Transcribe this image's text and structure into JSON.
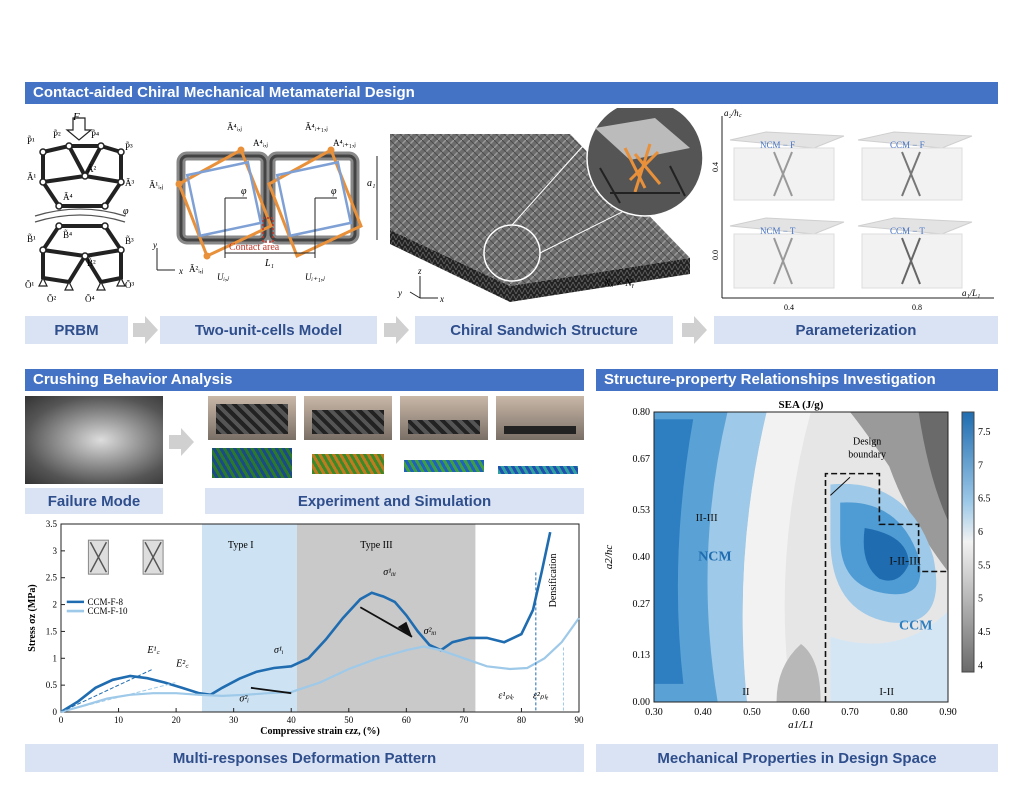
{
  "sections": {
    "top": "Contact-aided Chiral Mechanical Metamaterial Design",
    "crushing": "Crushing Behavior Analysis",
    "structure": "Structure-property Relationships Investigation"
  },
  "labels": {
    "prbm": "PRBM",
    "two_unit": "Two-unit-cells Model",
    "chiral_sandwich": "Chiral Sandwich Structure",
    "parameterization": "Parameterization",
    "failure": "Failure Mode",
    "experiment": "Experiment and Simulation",
    "multi": "Multi-responses Deformation Pattern",
    "mechanical": "Mechanical Properties in Design Space"
  },
  "prbm": {
    "force": "F",
    "nodes_p": [
      "P̃¹",
      "P̃²",
      "P̃⁴",
      "P̃³"
    ],
    "nodes_a": [
      "Ã¹",
      "Ã²",
      "Ã⁴",
      "Ã³"
    ],
    "nodes_b": [
      "B̃¹",
      "B̃²",
      "B̃⁴",
      "B̃³"
    ],
    "nodes_o": [
      "Õ¹",
      "Õ²",
      "Õ⁴",
      "Õ³"
    ],
    "phi": "φ"
  },
  "two_unit": {
    "a_top": [
      "Ã⁴ᵢ,ⱼ",
      "A⁴ᵢ,ⱼ",
      "Ã⁴ᵢ₊₁,ⱼ",
      "A⁴ᵢ₊₁,ⱼ"
    ],
    "a_left": "Ã¹ᵢ,ⱼ",
    "a_bottom": "Ã²ᵢ,ⱼ",
    "contact": "Contact area",
    "L1": "L₁",
    "a1": "a₁",
    "u1": "Uᵢ,ⱼ",
    "u2": "Uᵢ₊₁,ⱼ",
    "phi": "φ",
    "axis_y": "y",
    "axis_x": "x"
  },
  "sandwich": {
    "nxny": "Nₓ × Nᵧ",
    "axis_z": "z",
    "axis_y": "y",
    "axis_x": "x"
  },
  "param": {
    "ylabel": "a₂/h꜀",
    "xlabel": "a₁/L₁",
    "yticks": [
      "0.4",
      "0.0"
    ],
    "xticks": [
      "0.4",
      "0.8"
    ],
    "cells": [
      "NCM − F",
      "CCM − F",
      "NCM − T",
      "CCM − T"
    ]
  },
  "curve": {
    "legend": [
      "CCM-F-8",
      "CCM-F-10"
    ],
    "regions": [
      "Type I",
      "Type III",
      "Densification"
    ],
    "annotations": [
      "E¹꜀",
      "E²꜀",
      "σ¹ᵢ",
      "σ²ᵢ",
      "σ¹ᵢᵢᵢ",
      "σ²ᵢᵢᵢ",
      "ε¹ₚₗₑ",
      "ε²ₚₗₑ"
    ]
  },
  "contour": {
    "title": "SEA (J/g)",
    "labels": [
      "Design boundary",
      "II-III",
      "NCM",
      "I-II-III",
      "CCM",
      "II",
      "I-II"
    ]
  },
  "chart_data": [
    {
      "type": "line",
      "xlabel": "Compressive strain ϵzz, (%)",
      "ylabel": "Stress σz (MPa)",
      "xlim": [
        0,
        90
      ],
      "ylim": [
        0,
        3.5
      ],
      "xticks": [
        0,
        10,
        20,
        30,
        40,
        50,
        60,
        70,
        80,
        90
      ],
      "yticks": [
        0,
        0.5,
        1,
        1.5,
        2,
        2.5,
        3,
        3.5
      ],
      "legend_position": "top-left",
      "series": [
        {
          "name": "CCM-F-8",
          "color": "#1f6cb0",
          "points": [
            [
              0,
              0
            ],
            [
              3,
              0.2
            ],
            [
              6,
              0.45
            ],
            [
              9,
              0.6
            ],
            [
              12,
              0.67
            ],
            [
              15,
              0.63
            ],
            [
              18,
              0.55
            ],
            [
              21,
              0.45
            ],
            [
              24,
              0.35
            ],
            [
              26,
              0.32
            ],
            [
              28,
              0.45
            ],
            [
              31,
              0.62
            ],
            [
              34,
              0.75
            ],
            [
              37,
              0.82
            ],
            [
              40,
              0.85
            ],
            [
              43,
              1.0
            ],
            [
              46,
              1.35
            ],
            [
              49,
              1.75
            ],
            [
              52,
              2.1
            ],
            [
              54,
              2.22
            ],
            [
              56,
              2.15
            ],
            [
              58,
              2.05
            ],
            [
              60,
              1.8
            ],
            [
              62,
              1.5
            ],
            [
              64,
              1.25
            ],
            [
              66,
              1.15
            ],
            [
              68,
              1.3
            ],
            [
              71,
              1.38
            ],
            [
              74,
              1.38
            ],
            [
              77,
              1.3
            ],
            [
              80,
              1.45
            ],
            [
              82,
              1.9
            ],
            [
              83.5,
              2.6
            ],
            [
              85,
              3.35
            ]
          ]
        },
        {
          "name": "CCM-F-10",
          "color": "#9ec9e8",
          "points": [
            [
              0,
              0
            ],
            [
              4,
              0.12
            ],
            [
              8,
              0.25
            ],
            [
              12,
              0.32
            ],
            [
              16,
              0.35
            ],
            [
              20,
              0.35
            ],
            [
              24,
              0.32
            ],
            [
              28,
              0.3
            ],
            [
              32,
              0.32
            ],
            [
              36,
              0.35
            ],
            [
              40,
              0.37
            ],
            [
              45,
              0.55
            ],
            [
              50,
              0.8
            ],
            [
              55,
              1.0
            ],
            [
              60,
              1.15
            ],
            [
              63,
              1.22
            ],
            [
              66,
              1.15
            ],
            [
              70,
              1.0
            ],
            [
              74,
              0.85
            ],
            [
              78,
              0.8
            ],
            [
              81,
              0.82
            ],
            [
              84,
              1.0
            ],
            [
              87,
              1.3
            ],
            [
              90,
              1.75
            ]
          ]
        }
      ]
    },
    {
      "type": "heatmap",
      "title": "SEA (J/g)",
      "xlabel": "a1/L1",
      "ylabel": "a2/hc",
      "xticks": [
        0.3,
        0.4,
        0.5,
        0.6,
        0.7,
        0.8,
        0.9
      ],
      "yticks": [
        0.0,
        0.13,
        0.27,
        0.4,
        0.53,
        0.67,
        0.8
      ],
      "colorbar_ticks": [
        4,
        4.5,
        5,
        5.5,
        6,
        6.5,
        7,
        7.5
      ],
      "colorbar_range": [
        3.9,
        7.8
      ]
    }
  ]
}
